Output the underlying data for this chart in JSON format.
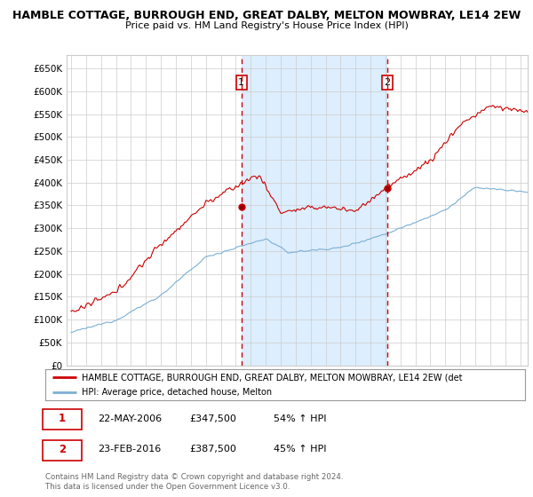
{
  "title": "HAMBLE COTTAGE, BURROUGH END, GREAT DALBY, MELTON MOWBRAY, LE14 2EW",
  "subtitle": "Price paid vs. HM Land Registry's House Price Index (HPI)",
  "legend_line1": "HAMBLE COTTAGE, BURROUGH END, GREAT DALBY, MELTON MOWBRAY, LE14 2EW (det",
  "legend_line2": "HPI: Average price, detached house, Melton",
  "annotation1_label": "1",
  "annotation1_date": "22-MAY-2006",
  "annotation1_price": "£347,500",
  "annotation1_hpi": "54% ↑ HPI",
  "annotation2_label": "2",
  "annotation2_date": "23-FEB-2016",
  "annotation2_price": "£387,500",
  "annotation2_hpi": "45% ↑ HPI",
  "copyright_text": "Contains HM Land Registry data © Crown copyright and database right 2024.\nThis data is licensed under the Open Government Licence v3.0.",
  "red_color": "#cc0000",
  "blue_color": "#7bafd4",
  "shade_color": "#ddeeff",
  "grid_color": "#cccccc",
  "background_color": "#ffffff",
  "ylim": [
    0,
    680000
  ],
  "yticks": [
    0,
    50000,
    100000,
    150000,
    200000,
    250000,
    300000,
    350000,
    400000,
    450000,
    500000,
    550000,
    600000,
    650000
  ],
  "sale1_x": 2006.38,
  "sale1_y": 347500,
  "sale2_x": 2016.12,
  "sale2_y": 387500,
  "xmin": 1994.7,
  "xmax": 2025.5
}
